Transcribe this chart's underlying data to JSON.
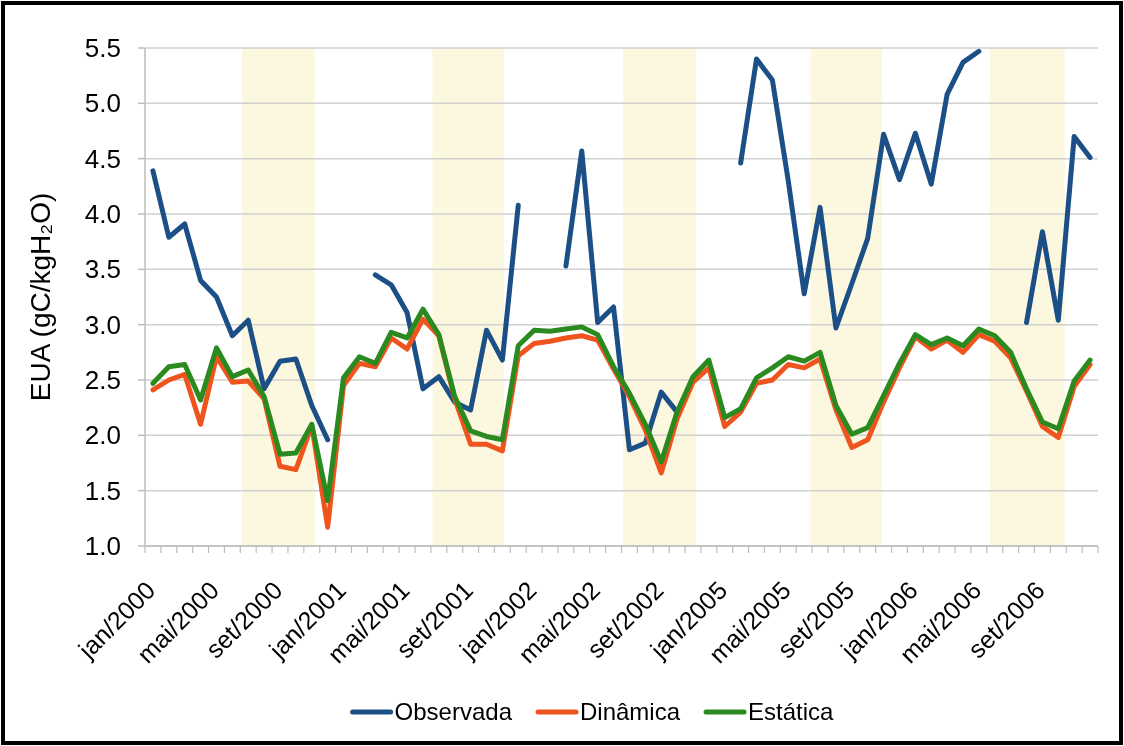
{
  "chart_data": {
    "type": "line",
    "ylabel": "EUA (gC/kgH₂O)",
    "categories": [
      "jan/2000",
      null,
      null,
      null,
      "mai/2000",
      null,
      null,
      null,
      "set/2000",
      null,
      null,
      null,
      "jan/2001",
      null,
      null,
      null,
      "mai/2001",
      null,
      null,
      null,
      "set/2001",
      null,
      null,
      null,
      "jan/2002",
      null,
      null,
      null,
      "mai/2002",
      null,
      null,
      null,
      "set/2002",
      null,
      null,
      null,
      "jan/2005",
      null,
      null,
      null,
      "mai/2005",
      null,
      null,
      null,
      "set/2005",
      null,
      null,
      null,
      "jan/2006",
      null,
      null,
      null,
      "mai/2006",
      null,
      null,
      null,
      "set/2006",
      null,
      null,
      null
    ],
    "series": [
      {
        "name": "Observada",
        "color": "#1b4f86",
        "values": [
          4.39,
          3.79,
          3.91,
          3.4,
          3.25,
          2.9,
          3.04,
          2.42,
          2.67,
          2.69,
          2.27,
          1.96,
          null,
          null,
          3.45,
          3.36,
          3.11,
          2.42,
          2.53,
          2.3,
          2.23,
          2.95,
          2.68,
          4.08,
          null,
          null,
          3.53,
          4.57,
          3.02,
          3.16,
          1.87,
          1.93,
          2.39,
          2.21,
          null,
          null,
          null,
          4.46,
          5.4,
          5.21,
          4.3,
          3.28,
          4.06,
          2.97,
          3.37,
          3.78,
          4.72,
          4.31,
          4.73,
          4.27,
          5.08,
          5.37,
          5.47,
          null,
          null,
          3.02,
          3.84,
          3.04,
          4.7,
          4.51
        ]
      },
      {
        "name": "Dinâmica",
        "color": "#f0541e",
        "values": [
          2.41,
          2.5,
          2.55,
          2.1,
          2.71,
          2.48,
          2.49,
          2.33,
          1.72,
          1.69,
          2.09,
          1.17,
          2.45,
          2.65,
          2.62,
          2.88,
          2.78,
          3.05,
          2.9,
          2.33,
          1.92,
          1.92,
          1.86,
          2.72,
          2.83,
          2.85,
          2.88,
          2.9,
          2.86,
          2.6,
          2.35,
          2.05,
          1.66,
          2.15,
          2.48,
          2.61,
          2.08,
          2.21,
          2.47,
          2.5,
          2.64,
          2.61,
          2.69,
          2.23,
          1.89,
          1.96,
          2.3,
          2.61,
          2.89,
          2.78,
          2.86,
          2.75,
          2.91,
          2.85,
          2.7,
          2.4,
          2.08,
          1.98,
          2.44,
          2.64
        ]
      },
      {
        "name": "Estática",
        "color": "#2a8a1f",
        "values": [
          2.47,
          2.62,
          2.64,
          2.32,
          2.79,
          2.53,
          2.59,
          2.35,
          1.83,
          1.84,
          2.1,
          1.41,
          2.52,
          2.71,
          2.65,
          2.93,
          2.88,
          3.14,
          2.91,
          2.35,
          2.04,
          1.99,
          1.96,
          2.81,
          2.95,
          2.94,
          2.96,
          2.98,
          2.91,
          2.62,
          2.38,
          2.1,
          1.76,
          2.21,
          2.53,
          2.68,
          2.16,
          2.24,
          2.52,
          2.61,
          2.71,
          2.67,
          2.75,
          2.27,
          2.01,
          2.07,
          2.36,
          2.65,
          2.91,
          2.82,
          2.88,
          2.81,
          2.96,
          2.9,
          2.75,
          2.42,
          2.12,
          2.06,
          2.49,
          2.68
        ]
      }
    ],
    "ylim": [
      1,
      5.5
    ],
    "yticks": [
      {
        "value": 1,
        "label": "1.0"
      },
      1.5,
      {
        "value": 2,
        "label": "2.0"
      },
      2.5,
      {
        "value": 3,
        "label": "3.0"
      },
      3.5,
      {
        "value": 4,
        "label": "4.0"
      },
      4.5,
      {
        "value": 5,
        "label": "5.0"
      },
      5.5
    ],
    "grid": "y",
    "legend": "bottom"
  }
}
